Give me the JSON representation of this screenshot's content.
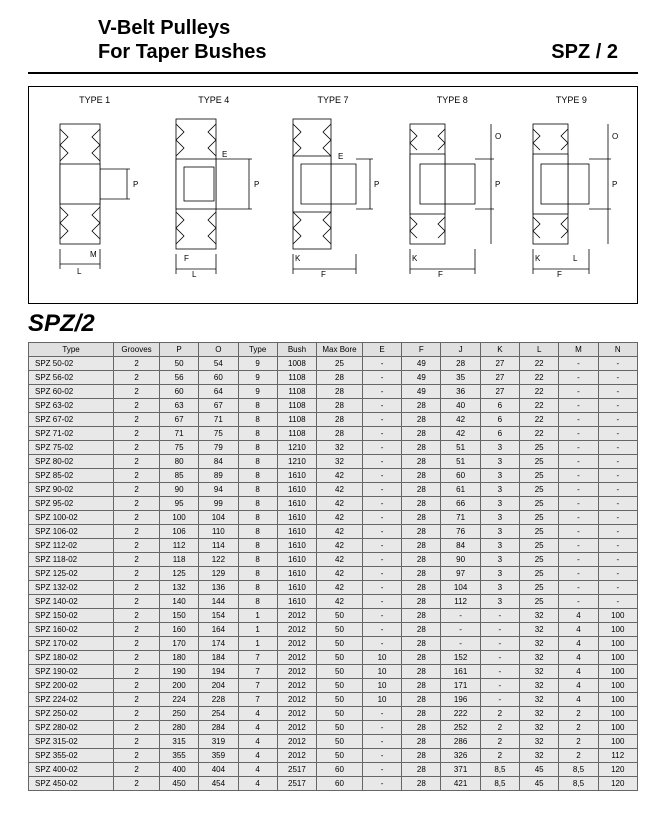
{
  "header": {
    "title_line1": "V-Belt  Pulleys",
    "title_line2": "For Taper Bushes",
    "code": "SPZ / 2"
  },
  "diagrams": {
    "labels": [
      "TYPE 1",
      "TYPE 4",
      "TYPE 7",
      "TYPE 8",
      "TYPE 9"
    ]
  },
  "section_title": "SPZ/2",
  "table": {
    "columns": [
      "Type",
      "Grooves",
      "P",
      "O",
      "Type",
      "Bush",
      "Max Bore",
      "E",
      "F",
      "J",
      "K",
      "L",
      "M",
      "N"
    ],
    "col_widths": [
      "13%",
      "7%",
      "6%",
      "6%",
      "6%",
      "6%",
      "7%",
      "6%",
      "6%",
      "6%",
      "6%",
      "6%",
      "6%",
      "6%"
    ],
    "rows": [
      [
        "SPZ  50-02",
        "2",
        "50",
        "54",
        "9",
        "1008",
        "25",
        "-",
        "49",
        "28",
        "27",
        "22",
        "-",
        "-"
      ],
      [
        "SPZ  56-02",
        "2",
        "56",
        "60",
        "9",
        "1108",
        "28",
        "-",
        "49",
        "35",
        "27",
        "22",
        "-",
        "-"
      ],
      [
        "SPZ  60-02",
        "2",
        "60",
        "64",
        "9",
        "1108",
        "28",
        "-",
        "49",
        "36",
        "27",
        "22",
        "-",
        "-"
      ],
      [
        "SPZ  63-02",
        "2",
        "63",
        "67",
        "8",
        "1108",
        "28",
        "-",
        "28",
        "40",
        "6",
        "22",
        "-",
        "-"
      ],
      [
        "SPZ  67-02",
        "2",
        "67",
        "71",
        "8",
        "1108",
        "28",
        "-",
        "28",
        "42",
        "6",
        "22",
        "-",
        "-"
      ],
      [
        "SPZ  71-02",
        "2",
        "71",
        "75",
        "8",
        "1108",
        "28",
        "-",
        "28",
        "42",
        "6",
        "22",
        "-",
        "-"
      ],
      [
        "SPZ  75-02",
        "2",
        "75",
        "79",
        "8",
        "1210",
        "32",
        "-",
        "28",
        "51",
        "3",
        "25",
        "-",
        "-"
      ],
      [
        "SPZ  80-02",
        "2",
        "80",
        "84",
        "8",
        "1210",
        "32",
        "-",
        "28",
        "51",
        "3",
        "25",
        "-",
        "-"
      ],
      [
        "SPZ  85-02",
        "2",
        "85",
        "89",
        "8",
        "1610",
        "42",
        "-",
        "28",
        "60",
        "3",
        "25",
        "-",
        "-"
      ],
      [
        "SPZ  90-02",
        "2",
        "90",
        "94",
        "8",
        "1610",
        "42",
        "-",
        "28",
        "61",
        "3",
        "25",
        "-",
        "-"
      ],
      [
        "SPZ  95-02",
        "2",
        "95",
        "99",
        "8",
        "1610",
        "42",
        "-",
        "28",
        "66",
        "3",
        "25",
        "-",
        "-"
      ],
      [
        "SPZ  100-02",
        "2",
        "100",
        "104",
        "8",
        "1610",
        "42",
        "-",
        "28",
        "71",
        "3",
        "25",
        "-",
        "-"
      ],
      [
        "SPZ  106-02",
        "2",
        "106",
        "110",
        "8",
        "1610",
        "42",
        "-",
        "28",
        "76",
        "3",
        "25",
        "-",
        "-"
      ],
      [
        "SPZ  112-02",
        "2",
        "112",
        "114",
        "8",
        "1610",
        "42",
        "-",
        "28",
        "84",
        "3",
        "25",
        "-",
        "-"
      ],
      [
        "SPZ  118-02",
        "2",
        "118",
        "122",
        "8",
        "1610",
        "42",
        "-",
        "28",
        "90",
        "3",
        "25",
        "-",
        "-"
      ],
      [
        "SPZ  125-02",
        "2",
        "125",
        "129",
        "8",
        "1610",
        "42",
        "-",
        "28",
        "97",
        "3",
        "25",
        "-",
        "-"
      ],
      [
        "SPZ  132-02",
        "2",
        "132",
        "136",
        "8",
        "1610",
        "42",
        "-",
        "28",
        "104",
        "3",
        "25",
        "-",
        "-"
      ],
      [
        "SPZ  140-02",
        "2",
        "140",
        "144",
        "8",
        "1610",
        "42",
        "-",
        "28",
        "112",
        "3",
        "25",
        "-",
        "-"
      ],
      [
        "SPZ  150-02",
        "2",
        "150",
        "154",
        "1",
        "2012",
        "50",
        "-",
        "28",
        "-",
        "-",
        "32",
        "4",
        "100"
      ],
      [
        "SPZ  160-02",
        "2",
        "160",
        "164",
        "1",
        "2012",
        "50",
        "-",
        "28",
        "-",
        "-",
        "32",
        "4",
        "100"
      ],
      [
        "SPZ  170-02",
        "2",
        "170",
        "174",
        "1",
        "2012",
        "50",
        "-",
        "28",
        "-",
        "-",
        "32",
        "4",
        "100"
      ],
      [
        "SPZ  180-02",
        "2",
        "180",
        "184",
        "7",
        "2012",
        "50",
        "10",
        "28",
        "152",
        "-",
        "32",
        "4",
        "100"
      ],
      [
        "SPZ  190-02",
        "2",
        "190",
        "194",
        "7",
        "2012",
        "50",
        "10",
        "28",
        "161",
        "-",
        "32",
        "4",
        "100"
      ],
      [
        "SPZ  200-02",
        "2",
        "200",
        "204",
        "7",
        "2012",
        "50",
        "10",
        "28",
        "171",
        "-",
        "32",
        "4",
        "100"
      ],
      [
        "SPZ  224-02",
        "2",
        "224",
        "228",
        "7",
        "2012",
        "50",
        "10",
        "28",
        "196",
        "-",
        "32",
        "4",
        "100"
      ],
      [
        "SPZ  250-02",
        "2",
        "250",
        "254",
        "4",
        "2012",
        "50",
        "-",
        "28",
        "222",
        "2",
        "32",
        "2",
        "100"
      ],
      [
        "SPZ  280-02",
        "2",
        "280",
        "284",
        "4",
        "2012",
        "50",
        "-",
        "28",
        "252",
        "2",
        "32",
        "2",
        "100"
      ],
      [
        "SPZ  315-02",
        "2",
        "315",
        "319",
        "4",
        "2012",
        "50",
        "-",
        "28",
        "286",
        "2",
        "32",
        "2",
        "100"
      ],
      [
        "SPZ  355-02",
        "2",
        "355",
        "359",
        "4",
        "2012",
        "50",
        "-",
        "28",
        "326",
        "2",
        "32",
        "2",
        "112"
      ],
      [
        "SPZ  400-02",
        "2",
        "400",
        "404",
        "4",
        "2517",
        "60",
        "-",
        "28",
        "371",
        "8,5",
        "45",
        "8,5",
        "120"
      ],
      [
        "SPZ  450-02",
        "2",
        "450",
        "454",
        "4",
        "2517",
        "60",
        "-",
        "28",
        "421",
        "8,5",
        "45",
        "8,5",
        "120"
      ]
    ]
  },
  "styling": {
    "page_bg": "#ffffff",
    "table_bg": "#e8e8e8",
    "border_color": "#666666",
    "header_rule": "#000000"
  }
}
